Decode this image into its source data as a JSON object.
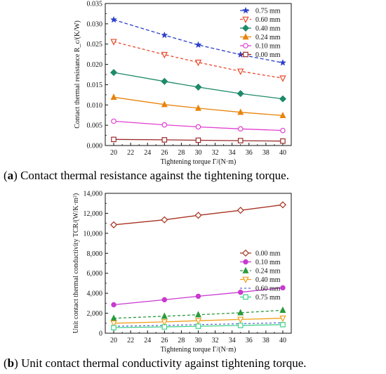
{
  "captions": {
    "a_letter": "a",
    "a_text": " Contact thermal resistance against the tightening torque.",
    "b_letter": "b",
    "b_text": " Unit contact thermal conductivity against tightening torque."
  },
  "chart_data": [
    {
      "type": "line",
      "title": "",
      "xlabel": "Tightening torque Γ/(N·m)",
      "ylabel": "Contact thermal resistance R_c/(K/W)",
      "x": [
        20,
        26,
        30,
        35,
        40
      ],
      "xticks": [
        "20",
        "22",
        "24",
        "26",
        "28",
        "30",
        "32",
        "34",
        "36",
        "38",
        "40"
      ],
      "xlim": [
        19,
        41
      ],
      "yticks": [
        "0.000",
        "0.005",
        "0.010",
        "0.015",
        "0.020",
        "0.025",
        "0.030",
        "0.035"
      ],
      "ylim": [
        0,
        0.035
      ],
      "legend_position": "top-right",
      "series": [
        {
          "name": "0.75 mm",
          "values": [
            0.031,
            0.0272,
            0.0248,
            0.0224,
            0.0204
          ],
          "color": "#2b3fc9",
          "marker": "star",
          "dash": "5,3"
        },
        {
          "name": "0.60 mm",
          "values": [
            0.0256,
            0.0224,
            0.0205,
            0.0183,
            0.0166
          ],
          "color": "#e8492c",
          "marker": "triangle-down",
          "dash": "4,3"
        },
        {
          "name": "0.40 mm",
          "values": [
            0.018,
            0.0158,
            0.0144,
            0.0128,
            0.0115
          ],
          "color": "#1e8a6a",
          "marker": "diamond",
          "dash": ""
        },
        {
          "name": "0.24 mm",
          "values": [
            0.0119,
            0.0101,
            0.0092,
            0.0082,
            0.0074
          ],
          "color": "#e8850c",
          "marker": "triangle-up",
          "dash": ""
        },
        {
          "name": "0.10 mm",
          "values": [
            0.006,
            0.0051,
            0.0046,
            0.0041,
            0.0037
          ],
          "color": "#e23fd0",
          "marker": "circle",
          "dash": ""
        },
        {
          "name": "0.00 mm",
          "values": [
            0.0015,
            0.0014,
            0.0013,
            0.0012,
            0.0011
          ],
          "color": "#9a2a2a",
          "marker": "square",
          "dash": ""
        }
      ]
    },
    {
      "type": "line",
      "title": "",
      "xlabel": "Tightening torque Γ/(N·m)",
      "ylabel": "Unit contact thermal conductivity TCR/(W/K·m²)",
      "x": [
        20,
        26,
        30,
        35,
        40
      ],
      "xticks": [
        "20",
        "22",
        "24",
        "26",
        "28",
        "30",
        "32",
        "34",
        "36",
        "38",
        "40"
      ],
      "xlim": [
        19,
        41
      ],
      "yticks": [
        "0",
        "2,000",
        "4,000",
        "6,000",
        "8,000",
        "10,000",
        "12,000",
        "14,000"
      ],
      "ylim": [
        0,
        14000
      ],
      "legend_position": "center-right",
      "series": [
        {
          "name": "0.00 mm",
          "values": [
            10850,
            11350,
            11800,
            12300,
            12850
          ],
          "color": "#a83220",
          "marker": "diamond",
          "dash": ""
        },
        {
          "name": "0.10 mm",
          "values": [
            2850,
            3350,
            3700,
            4100,
            4550
          ],
          "color": "#c83ad0",
          "marker": "circle-filled",
          "dash": ""
        },
        {
          "name": "0.24 mm",
          "values": [
            1500,
            1700,
            1850,
            2050,
            2300
          ],
          "color": "#2c9a3c",
          "marker": "triangle-up",
          "dash": "4,3"
        },
        {
          "name": "0.40 mm",
          "values": [
            1000,
            1130,
            1250,
            1380,
            1500
          ],
          "color": "#f0a020",
          "marker": "triangle-down",
          "dash": ""
        },
        {
          "name": "0.60 mm",
          "values": [
            700,
            780,
            860,
            950,
            1050
          ],
          "color": "#5a6ad8",
          "marker": "none",
          "dash": "3,3"
        },
        {
          "name": "0.75 mm",
          "values": [
            560,
            630,
            700,
            780,
            860
          ],
          "color": "#3ed28a",
          "marker": "square",
          "dash": ""
        }
      ]
    }
  ]
}
